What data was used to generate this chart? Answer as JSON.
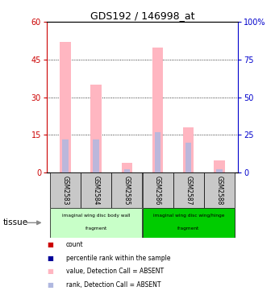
{
  "title": "GDS192 / 146998_at",
  "samples": [
    "GSM2583",
    "GSM2584",
    "GSM2585",
    "GSM2586",
    "GSM2587",
    "GSM2588"
  ],
  "pink_bar_heights": [
    52,
    35,
    4,
    50,
    18,
    5
  ],
  "blue_bar_heights": [
    22,
    22,
    2,
    27,
    20,
    2
  ],
  "ylim_left": [
    0,
    60
  ],
  "ylim_right": [
    0,
    100
  ],
  "yticks_left": [
    0,
    15,
    30,
    45,
    60
  ],
  "yticks_right": [
    0,
    25,
    50,
    75,
    100
  ],
  "pink_color": "#ffb6c1",
  "light_blue_color": "#b0b8e0",
  "red_color": "#cc0000",
  "dark_blue_color": "#000099",
  "bg_color": "#ffffff",
  "axis_left_color": "#cc0000",
  "axis_right_color": "#0000cc",
  "sample_bg_color": "#c8c8c8",
  "group1_bg": "#c8ffc8",
  "group2_bg": "#00cc00",
  "bar_width": 0.35,
  "legend_items": [
    [
      "#cc0000",
      "count"
    ],
    [
      "#000099",
      "percentile rank within the sample"
    ],
    [
      "#ffb6c1",
      "value, Detection Call = ABSENT"
    ],
    [
      "#b0b8e0",
      "rank, Detection Call = ABSENT"
    ]
  ]
}
